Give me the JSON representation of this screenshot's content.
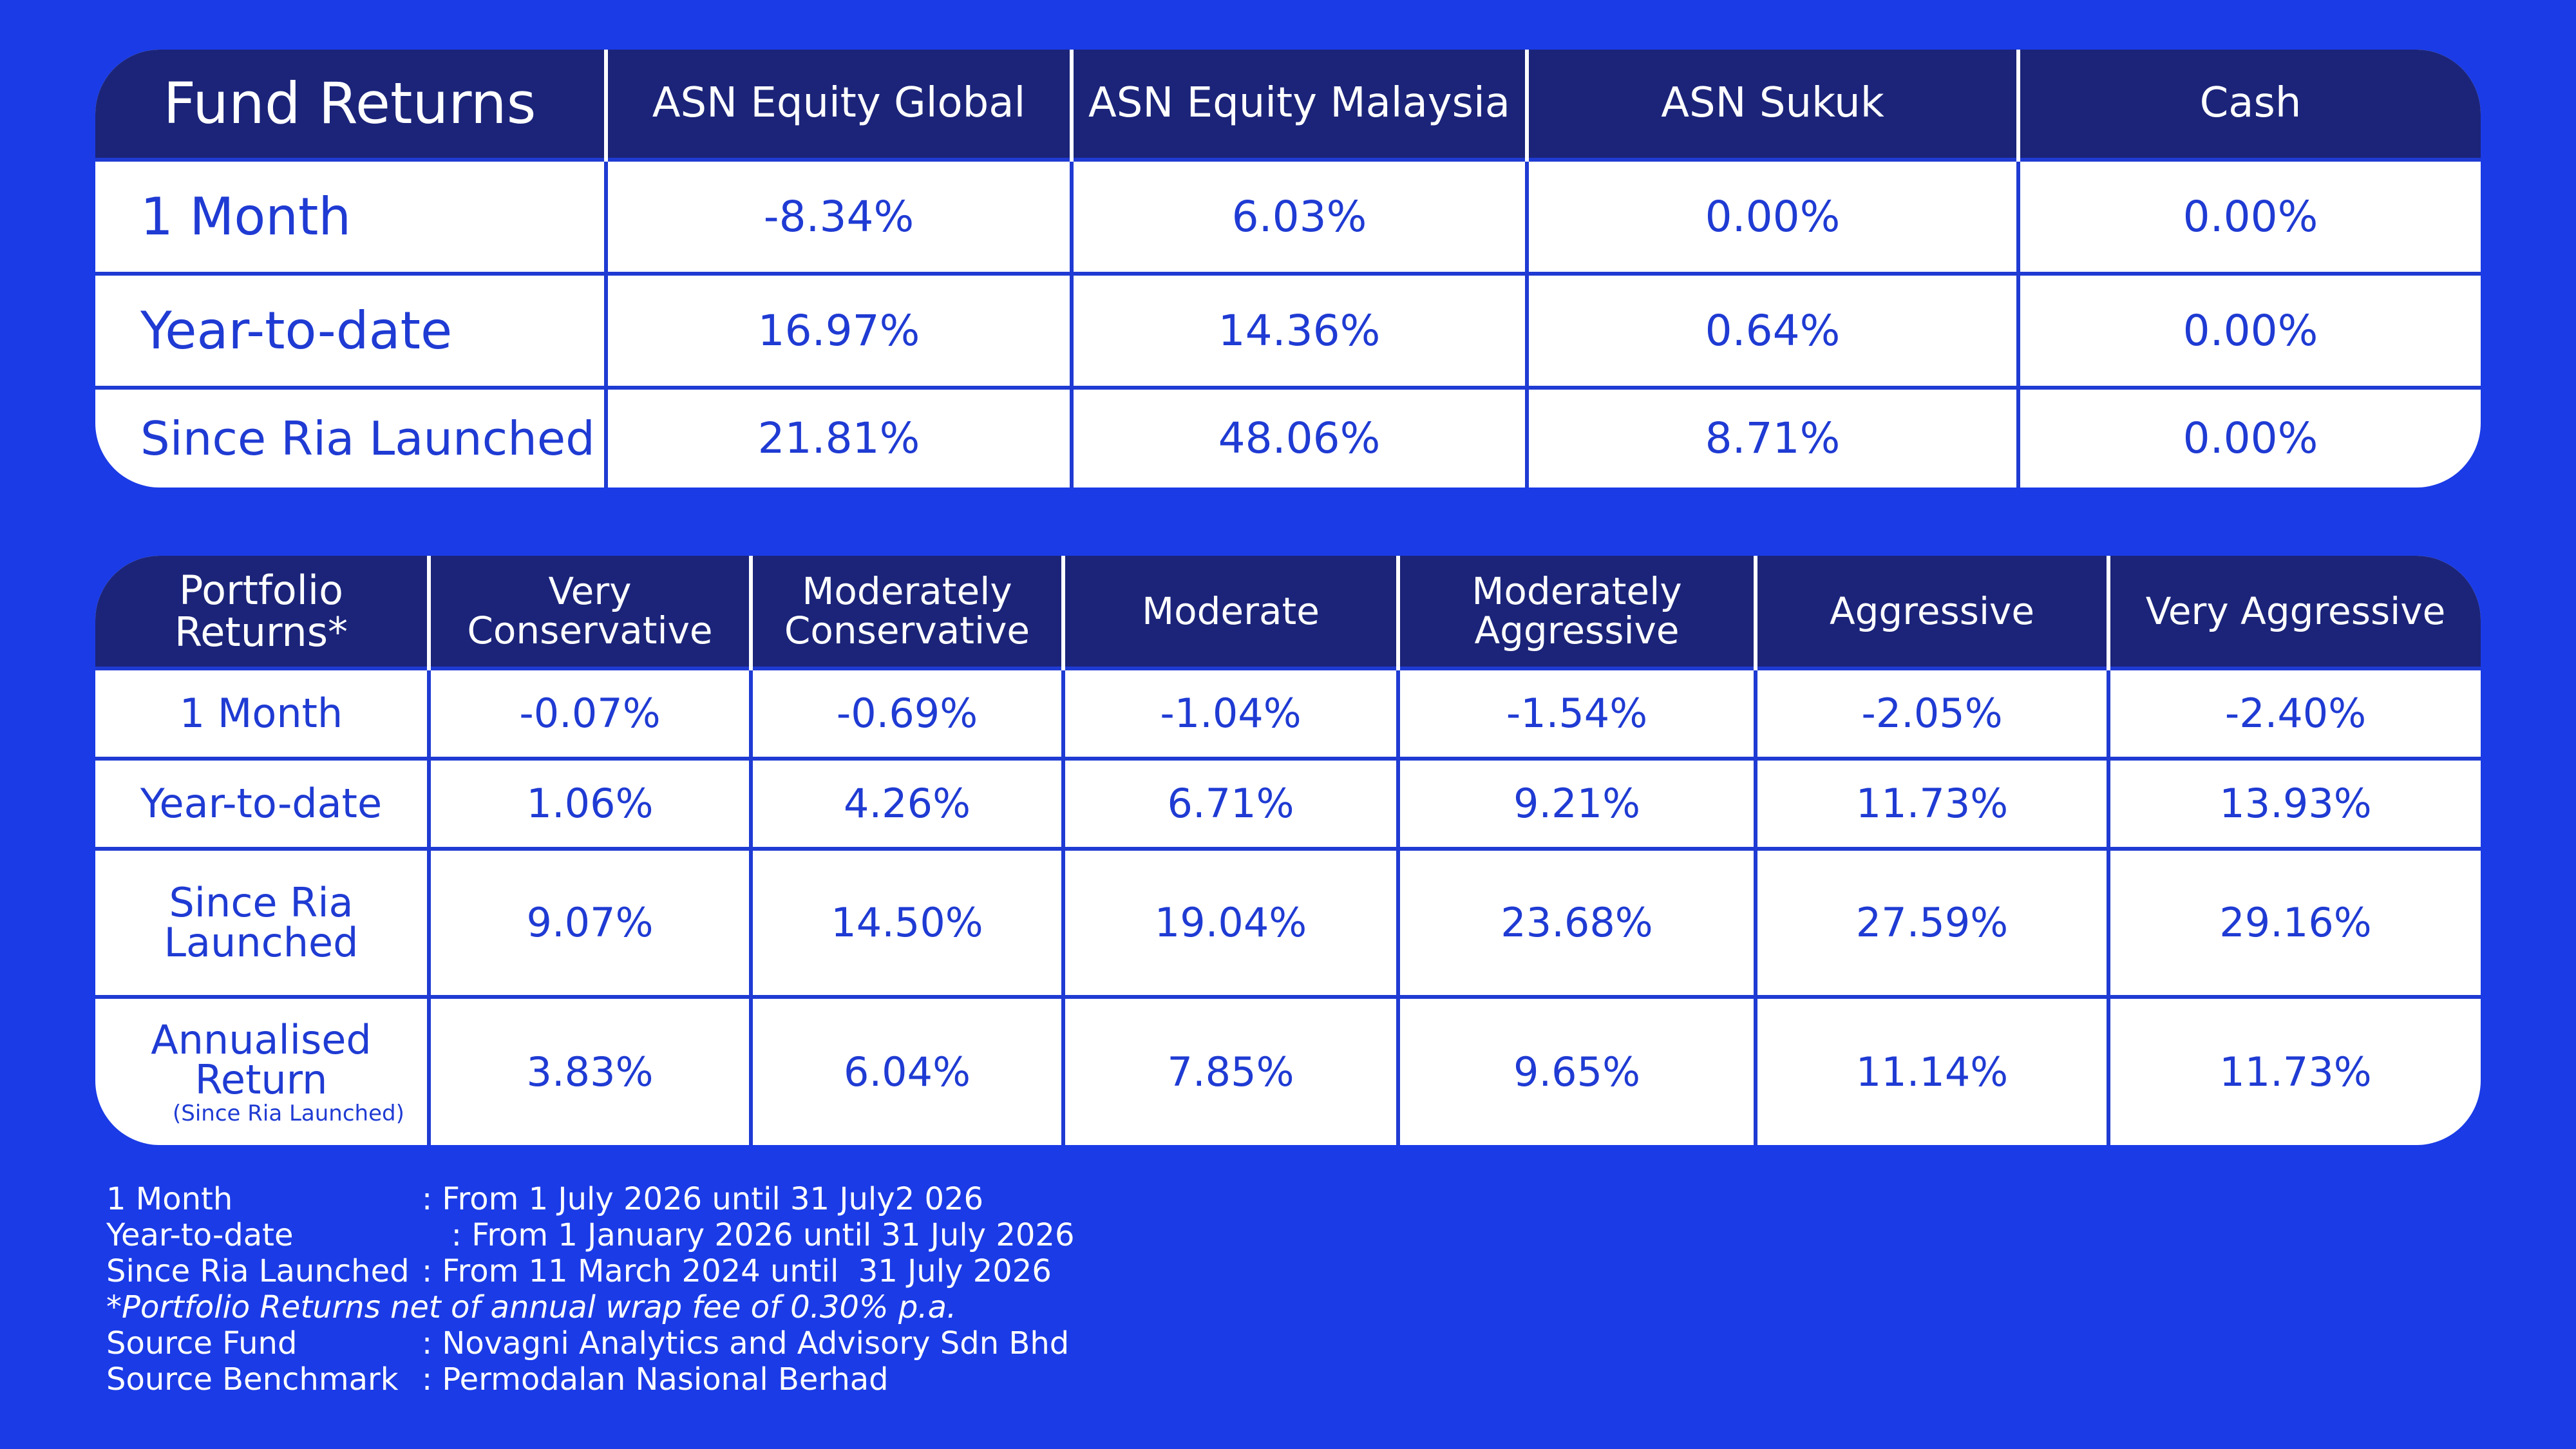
{
  "fund_returns": {
    "title": "Fund Returns",
    "columns": [
      "ASN Equity Global",
      "ASN Equity Malaysia",
      "ASN Sukuk",
      "Cash"
    ],
    "rows": [
      {
        "label": "1 Month",
        "values": [
          "-8.34%",
          "6.03%",
          "0.00%",
          "0.00%"
        ]
      },
      {
        "label": "Year-to-date",
        "values": [
          "16.97%",
          "14.36%",
          "0.64%",
          "0.00%"
        ]
      },
      {
        "label": "Since Ria Launched",
        "values": [
          "21.81%",
          "48.06%",
          "8.71%",
          "0.00%"
        ]
      }
    ]
  },
  "portfolio_returns": {
    "title": "Portfolio Returns*",
    "columns": [
      "Very Conservative",
      "Moderately Conservative",
      "Moderate",
      "Moderately Aggressive",
      "Aggressive",
      "Very Aggressive"
    ],
    "rows": [
      {
        "label": "1 Month",
        "values": [
          "-0.07%",
          "-0.69%",
          "-1.04%",
          "-1.54%",
          "-2.05%",
          "-2.40%"
        ]
      },
      {
        "label": "Year-to-date",
        "values": [
          "1.06%",
          "4.26%",
          "6.71%",
          "9.21%",
          "11.73%",
          "13.93%"
        ]
      },
      {
        "label": "Since Ria Launched",
        "values": [
          "9.07%",
          "14.50%",
          "19.04%",
          "23.68%",
          "27.59%",
          "29.16%"
        ]
      },
      {
        "label": "Annualised Return",
        "sublabel": "(Since Ria Launched)",
        "values": [
          "3.83%",
          "6.04%",
          "7.85%",
          "9.65%",
          "11.14%",
          "11.73%"
        ]
      }
    ]
  },
  "notes": {
    "one_month_key": "1 Month",
    "one_month_val": ": From 1 July 2026 until 31 July2 026",
    "ytd_key": "Year-to-date",
    "ytd_val": "   : From 1 January 2026 until 31 July 2026",
    "since_key": "Since Ria Launched",
    "since_val": ": From 11 March 2024 until  31 July 2026",
    "disclaimer": "*Portfolio Returns net of annual wrap fee of 0.30% p.a.",
    "source_fund_key": "Source Fund",
    "source_fund_val": ": Novagni Analytics and Advisory Sdn Bhd",
    "source_bench_key": "Source Benchmark",
    "source_bench_val": ": Permodalan Nasional Berhad"
  },
  "colors": {
    "background": "#1a3be6",
    "header": "#1b2479",
    "text_accent": "#1f3bd3"
  }
}
